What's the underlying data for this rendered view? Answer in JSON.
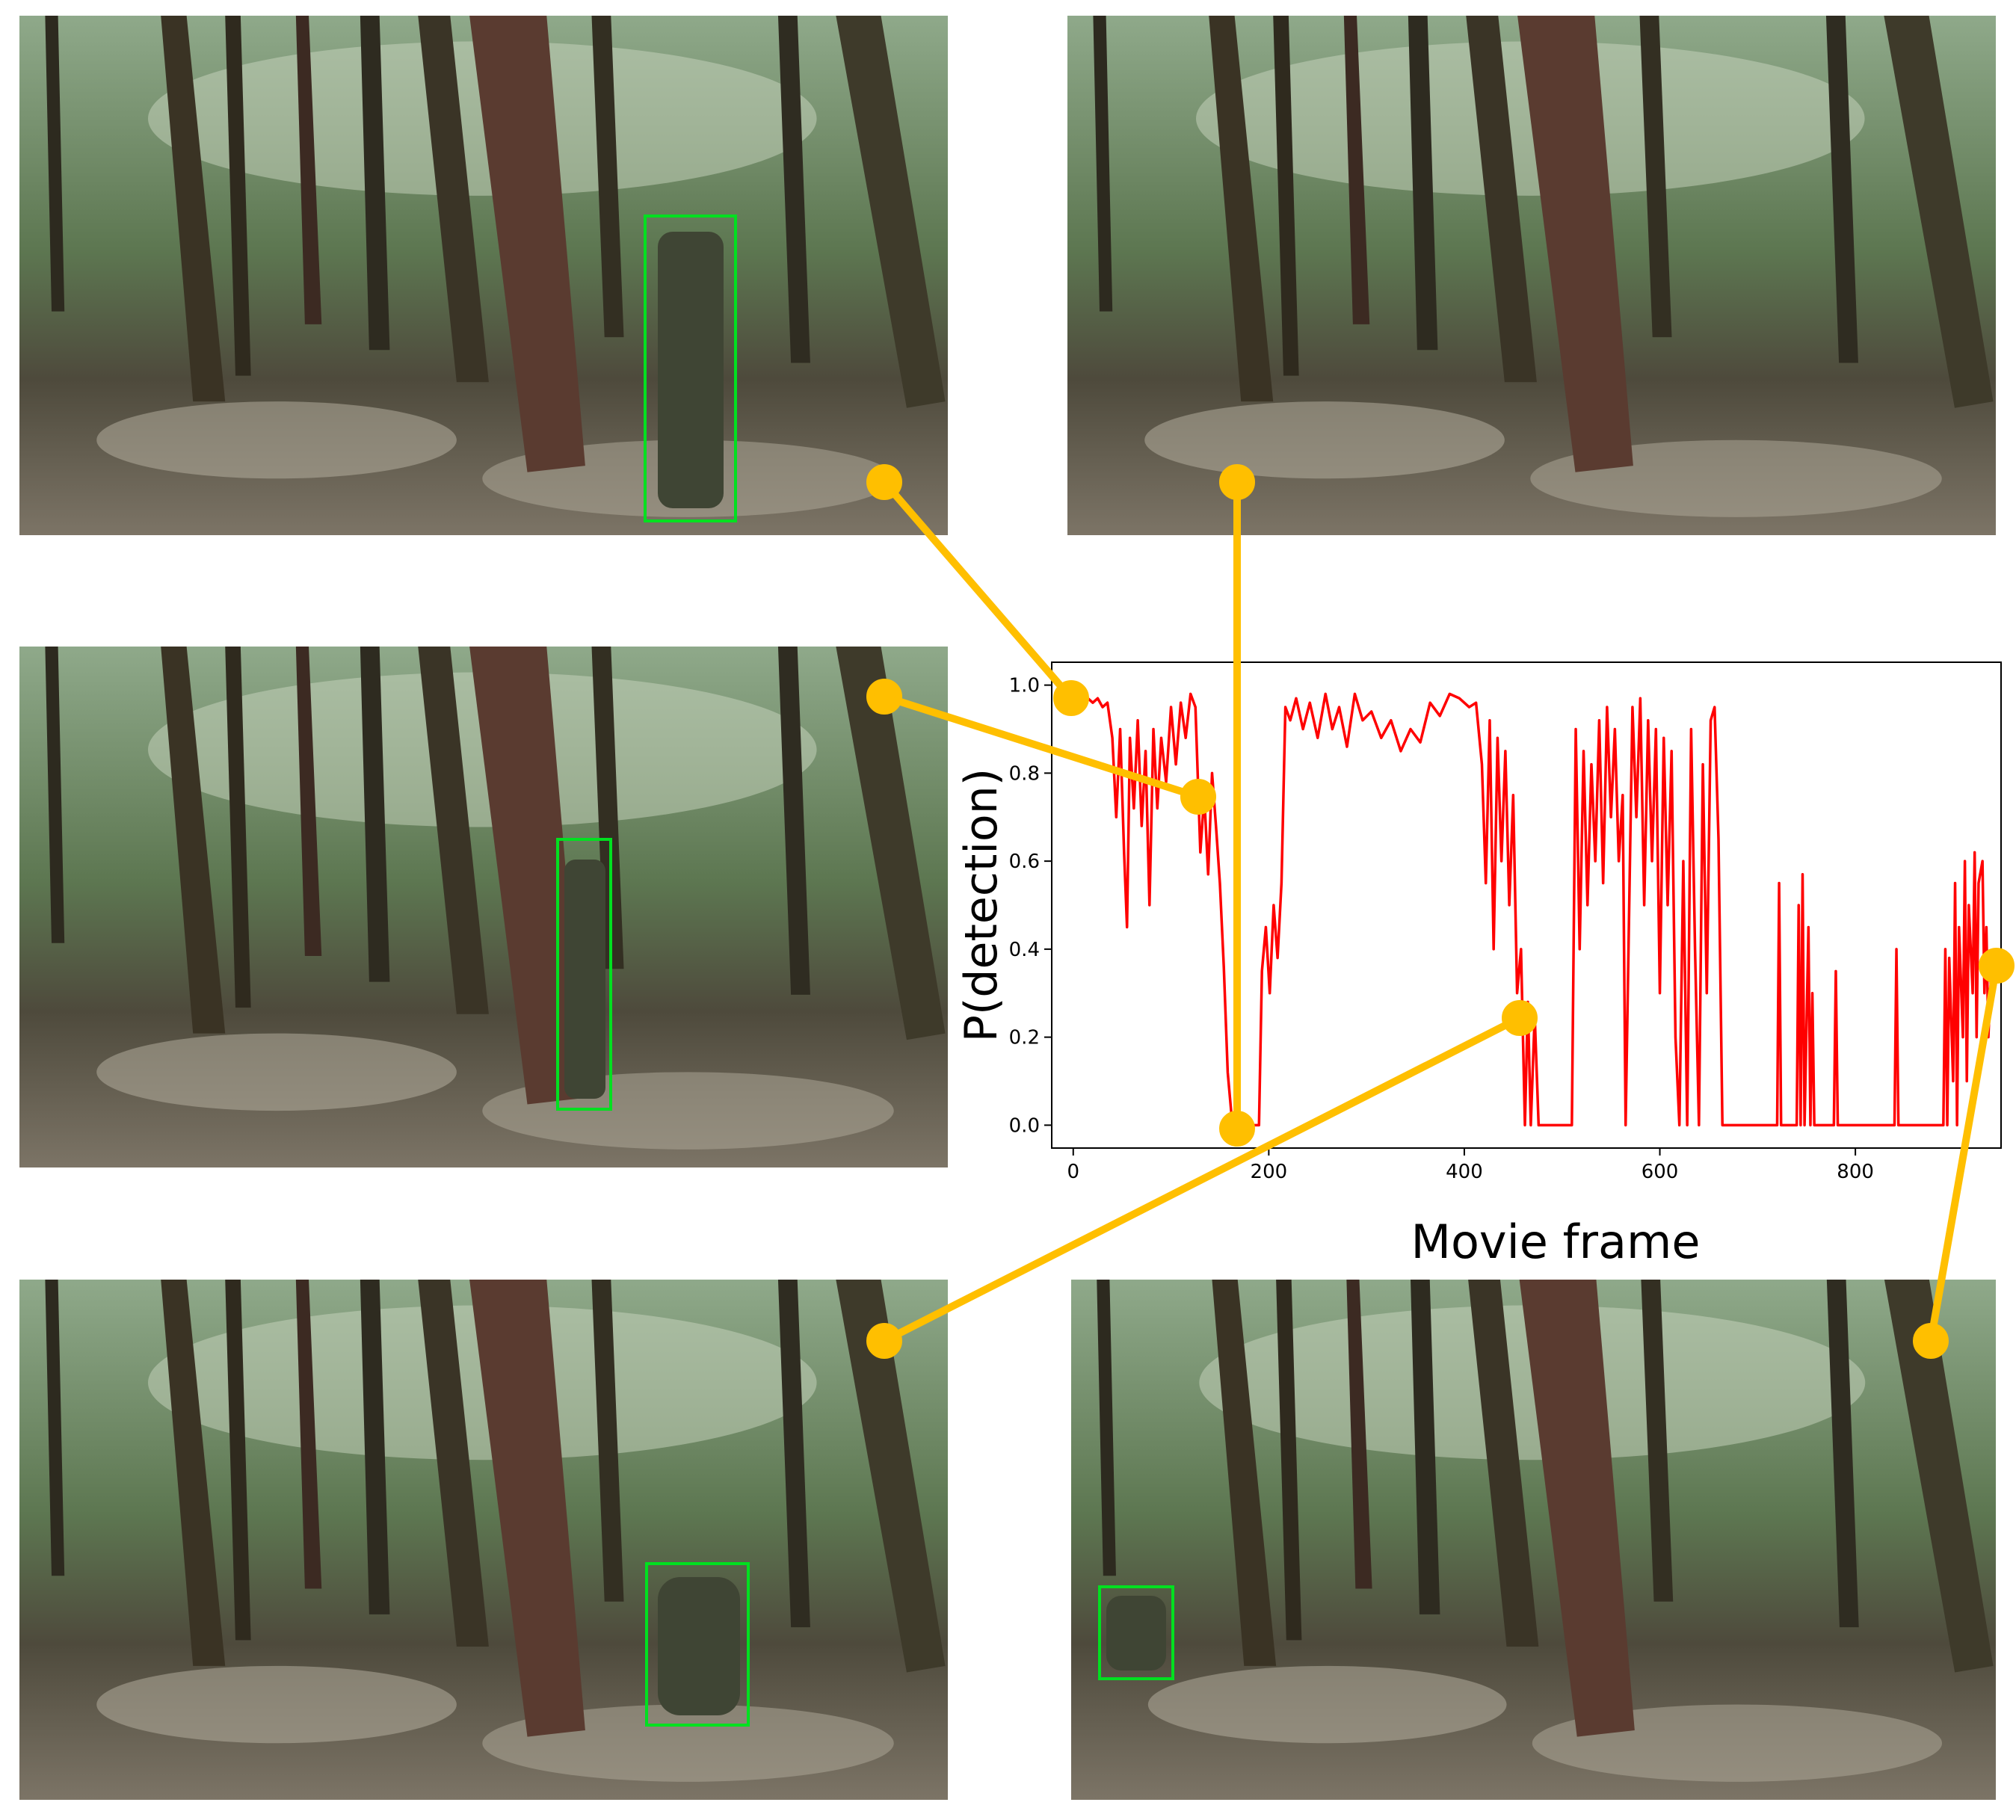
{
  "chart_data": {
    "type": "line",
    "xlabel": "Movie frame",
    "ylabel": "P(detection)",
    "xlim": [
      -22,
      949
    ],
    "ylim": [
      -0.052,
      1.052
    ],
    "xticks": [
      0,
      200,
      400,
      600,
      800
    ],
    "yticks": [
      {
        "value": 0,
        "label": "0.0"
      },
      {
        "value": 0.2,
        "label": "0.2"
      },
      {
        "value": 0.4,
        "label": "0.4"
      },
      {
        "value": 0.6,
        "label": "0.6"
      },
      {
        "value": 0.8,
        "label": "0.8"
      },
      {
        "value": 1,
        "label": "1.0"
      }
    ],
    "grid": false,
    "series": [
      {
        "color": "#ff0000",
        "x": [
          0,
          5,
          10,
          15,
          20,
          25,
          30,
          35,
          40,
          44,
          48,
          52,
          55,
          58,
          62,
          66,
          70,
          74,
          78,
          82,
          86,
          90,
          95,
          100,
          105,
          110,
          115,
          120,
          125,
          130,
          134,
          138,
          142,
          146,
          150,
          154,
          158,
          162,
          165,
          190,
          193,
          197,
          201,
          205,
          209,
          213,
          217,
          222,
          228,
          235,
          242,
          250,
          258,
          265,
          272,
          280,
          288,
          296,
          305,
          315,
          325,
          335,
          345,
          355,
          365,
          375,
          385,
          395,
          405,
          412,
          418,
          422,
          426,
          430,
          434,
          438,
          442,
          446,
          450,
          454,
          458,
          462,
          465,
          468,
          472,
          476,
          480,
          510,
          514,
          518,
          522,
          526,
          530,
          534,
          538,
          542,
          546,
          550,
          554,
          558,
          562,
          565,
          572,
          576,
          580,
          584,
          588,
          592,
          596,
          600,
          604,
          608,
          612,
          616,
          620,
          624,
          628,
          632,
          636,
          640,
          644,
          648,
          652,
          656,
          660,
          664,
          668,
          720,
          722,
          724,
          726,
          740,
          742,
          744,
          746,
          748,
          752,
          754,
          756,
          758,
          778,
          780,
          782,
          784,
          840,
          842,
          844,
          846,
          890,
          892,
          894,
          896,
          900,
          902,
          904,
          906,
          910,
          912,
          914,
          916,
          920,
          922,
          924,
          926,
          930,
          932,
          934,
          936,
          940
        ],
        "values": [
          0.98,
          0.97,
          0.96,
          0.97,
          0.96,
          0.97,
          0.95,
          0.96,
          0.88,
          0.7,
          0.9,
          0.62,
          0.45,
          0.88,
          0.72,
          0.92,
          0.68,
          0.85,
          0.5,
          0.9,
          0.72,
          0.88,
          0.78,
          0.95,
          0.82,
          0.96,
          0.88,
          0.98,
          0.95,
          0.62,
          0.75,
          0.57,
          0.8,
          0.68,
          0.55,
          0.36,
          0.12,
          0.02,
          0,
          0,
          0.35,
          0.45,
          0.3,
          0.5,
          0.38,
          0.55,
          0.95,
          0.92,
          0.97,
          0.9,
          0.96,
          0.88,
          0.98,
          0.9,
          0.95,
          0.86,
          0.98,
          0.92,
          0.94,
          0.88,
          0.92,
          0.85,
          0.9,
          0.87,
          0.96,
          0.93,
          0.98,
          0.97,
          0.95,
          0.96,
          0.82,
          0.55,
          0.92,
          0.4,
          0.88,
          0.6,
          0.85,
          0.5,
          0.75,
          0.3,
          0.4,
          0,
          0.28,
          0,
          0.25,
          0,
          0,
          0,
          0.9,
          0.4,
          0.85,
          0.5,
          0.82,
          0.6,
          0.92,
          0.55,
          0.95,
          0.7,
          0.9,
          0.6,
          0.75,
          0,
          0.95,
          0.7,
          0.97,
          0.5,
          0.92,
          0.6,
          0.9,
          0.3,
          0.88,
          0.5,
          0.85,
          0.2,
          0,
          0.6,
          0,
          0.9,
          0.4,
          0,
          0.82,
          0.3,
          0.92,
          0.95,
          0.65,
          0,
          0,
          0,
          0.55,
          0,
          0,
          0,
          0.5,
          0,
          0.57,
          0,
          0.45,
          0,
          0.3,
          0,
          0,
          0.35,
          0,
          0,
          0,
          0.4,
          0,
          0,
          0,
          0.4,
          0,
          0.38,
          0.1,
          0.55,
          0,
          0.45,
          0.2,
          0.6,
          0.1,
          0.5,
          0.3,
          0.62,
          0.2,
          0.55,
          0.6,
          0.3,
          0.45,
          0.2,
          0.4
        ]
      }
    ]
  }
}
